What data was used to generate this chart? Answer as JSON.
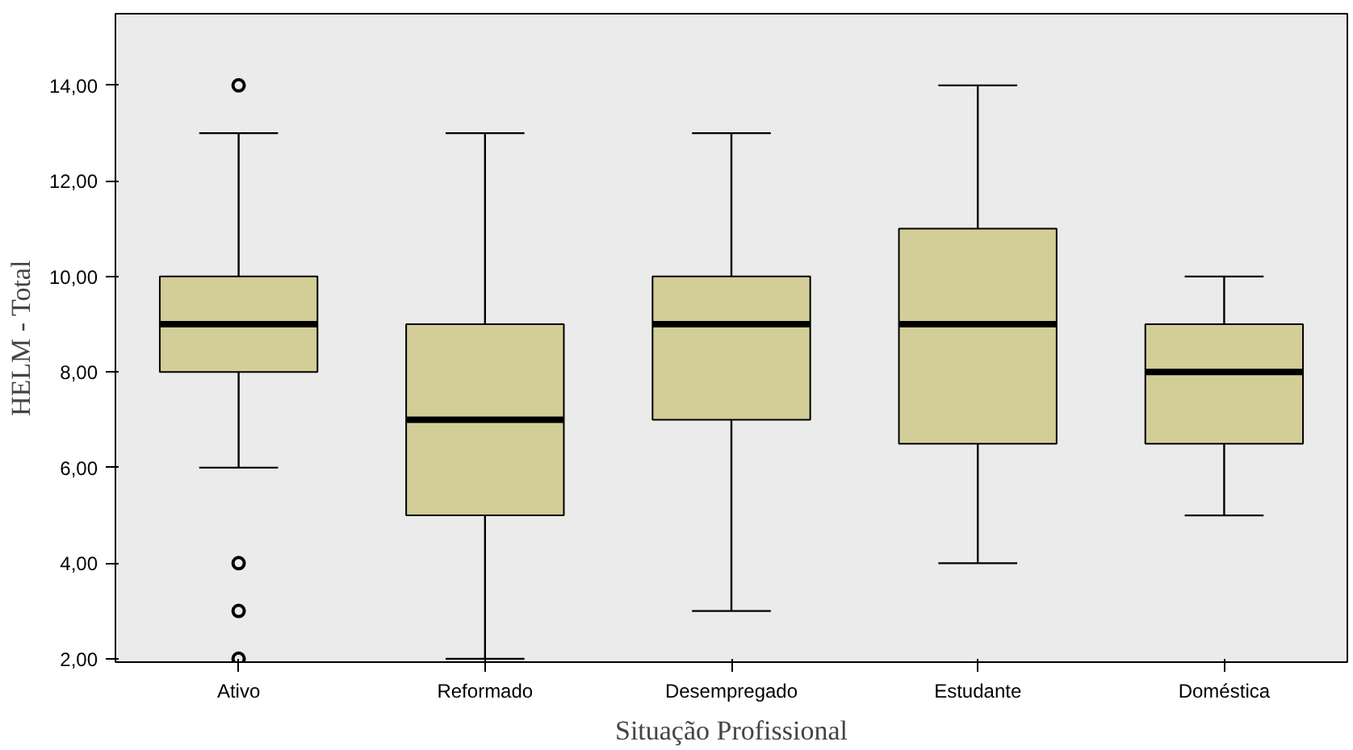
{
  "chart_data": {
    "type": "box",
    "xlabel": "Situação Profissional",
    "ylabel": "HELM - Total",
    "categories": [
      "Ativo",
      "Reformado",
      "Desempregado",
      "Estudante",
      "Doméstica"
    ],
    "boxes": [
      {
        "low": 6,
        "q1": 8,
        "median": 9,
        "q3": 10,
        "high": 13,
        "outliers": [
          14,
          4,
          3,
          2
        ]
      },
      {
        "low": 2,
        "q1": 5,
        "median": 7,
        "q3": 9,
        "high": 13
      },
      {
        "low": 3,
        "q1": 7,
        "median": 9,
        "q3": 10,
        "high": 13
      },
      {
        "low": 4,
        "q1": 6.5,
        "median": 9,
        "q3": 11,
        "high": 14
      },
      {
        "low": 5,
        "q1": 6.5,
        "median": 8,
        "q3": 9,
        "high": 10
      }
    ],
    "color": "#d3ce97",
    "ylim": [
      1.93,
      15.5
    ],
    "yticks": [
      {
        "value": 2,
        "label": "2,00"
      },
      {
        "value": 4,
        "label": "4,00"
      },
      {
        "value": 6,
        "label": "6,00"
      },
      {
        "value": 8,
        "label": "8,00"
      },
      {
        "value": 10,
        "label": "10,00"
      },
      {
        "value": 12,
        "label": "12,00"
      },
      {
        "value": 14,
        "label": "14,00"
      }
    ],
    "grid": false
  }
}
